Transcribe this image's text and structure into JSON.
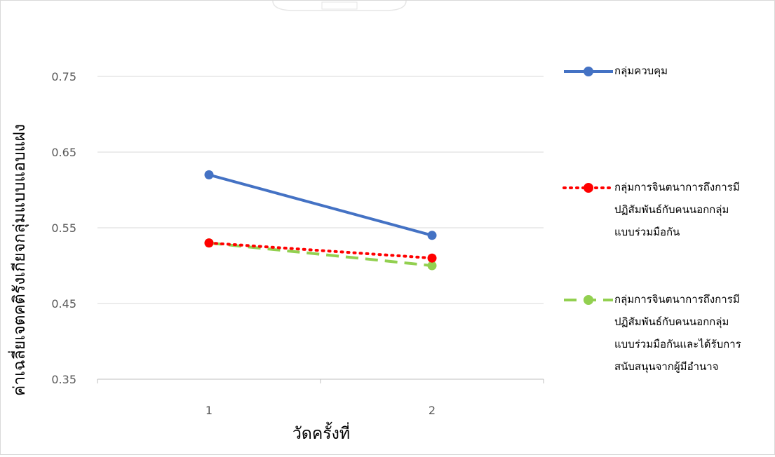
{
  "chart_data": {
    "type": "line",
    "categories": [
      "1",
      "2"
    ],
    "ylim": [
      0.35,
      0.75
    ],
    "yticks": [
      "0.35",
      "0.45",
      "0.55",
      "0.65",
      "0.75"
    ],
    "xlabel": "วัดครั้งที่",
    "ylabel": "ค่าเฉลี่ยเจตคติรังเกียจกลุ่มแบบแอบแฝง",
    "grid": true,
    "legend_position": "right",
    "series": [
      {
        "name": "กลุ่มควบคุม",
        "values": [
          0.62,
          0.54
        ],
        "color": "#4472C4",
        "line_style": "solid",
        "label_lines": [
          "กลุ่มควบคุม"
        ]
      },
      {
        "name": "กลุ่มการจินตนาการถึงการมีปฏิสัมพันธ์กับคนนอกกลุ่มแบบร่วมมือกัน",
        "values": [
          0.53,
          0.51
        ],
        "color": "#FF0000",
        "line_style": "dotted",
        "label_lines": [
          "กลุ่มการจินตนาการถึงการมี",
          "ปฏิสัมพันธ์กับคนนอกกลุ่ม",
          "แบบร่วมมือกัน"
        ]
      },
      {
        "name": "กลุ่มการจินตนาการถึงการมีปฏิสัมพันธ์กับคนนอกกลุ่มแบบร่วมมือกันและได้รับการสนับสนุนจากผู้มีอำนาจ",
        "values": [
          0.53,
          0.5
        ],
        "color": "#92D050",
        "line_style": "dashed",
        "label_lines": [
          "กลุ่มการจินตนาการถึงการมี",
          "ปฏิสัมพันธ์กับคนนอกกลุ่ม",
          "แบบร่วมมือกันและได้รับการ",
          "สนับสนุนจากผู้มีอำนาจ"
        ]
      }
    ]
  }
}
